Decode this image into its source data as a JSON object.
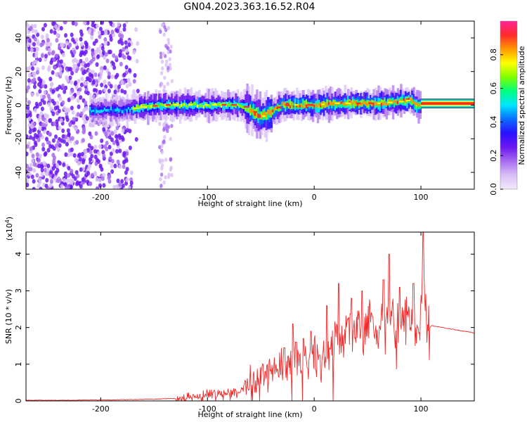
{
  "figure": {
    "title": "GN04.2023.363.16.52.R04"
  },
  "colors": {
    "snr_line": "#ee2a2a",
    "band": "#222222",
    "axes": "#000000"
  },
  "colorbar": {
    "label": "Normalized spectral amplitude",
    "ticks": [
      "0.0",
      "0.2",
      "0.4",
      "0.6",
      "0.8"
    ],
    "tick_values": [
      0.0,
      0.2,
      0.4,
      0.6,
      0.8
    ],
    "range": [
      0,
      1
    ],
    "colormap": [
      "#f2e9fb",
      "#d9bff5",
      "#a86cf0",
      "#6b18f0",
      "#2a10ff",
      "#0a6cff",
      "#00e5ff",
      "#00ff80",
      "#7fff00",
      "#ffff00",
      "#ff9900",
      "#ff2a2a",
      "#ff2299"
    ]
  },
  "chart_data": [
    {
      "type": "heatmap",
      "xlabel": "Height of straight line (km)",
      "ylabel": "Frequency (Hz)",
      "xlim": [
        -270,
        150
      ],
      "ylim": [
        -50,
        50
      ],
      "xticks": [
        -200,
        -100,
        0,
        100
      ],
      "xtick_labels": [
        "-200",
        "-100",
        "0",
        "100"
      ],
      "yticks": [
        -40,
        -20,
        0,
        20,
        40
      ],
      "ytick_labels": [
        "-40",
        "-20",
        "0",
        "20",
        "40"
      ],
      "ridge": {
        "x": [
          -205,
          -180,
          -160,
          -140,
          -120,
          -100,
          -85,
          -70,
          -60,
          -50,
          -40,
          -30,
          -15,
          0,
          20,
          40,
          60,
          80,
          90,
          98,
          105,
          150
        ],
        "y": [
          -3,
          -3,
          -1,
          0,
          0,
          0,
          0,
          0,
          -3,
          -7,
          -4,
          0,
          0,
          0,
          1,
          1,
          1,
          2,
          3,
          -1,
          1,
          1
        ]
      }
    },
    {
      "type": "line",
      "xlabel": "Height of straight line (km)",
      "ylabel": "SNR (10 * v/v)",
      "yscale_label": "(x10",
      "yscale_exp": "4",
      "yscale_close": ")",
      "xlim": [
        -270,
        150
      ],
      "ylim": [
        0,
        4.6
      ],
      "xticks": [
        -200,
        -100,
        0,
        100
      ],
      "xtick_labels": [
        "-200",
        "-100",
        "0",
        "100"
      ],
      "yticks": [
        0,
        1,
        2,
        3,
        4
      ],
      "ytick_labels": [
        "0",
        "1",
        "2",
        "3",
        "4"
      ],
      "series": [
        {
          "x": [
            -270,
            -250,
            -230,
            -210,
            -190,
            -170,
            -150,
            -130,
            -120,
            -110,
            -100,
            -90,
            -80,
            -70,
            -60,
            -50,
            -40,
            -30,
            -20,
            -10,
            0,
            10,
            20,
            30,
            40,
            50,
            60,
            70,
            80,
            90,
            95,
            100,
            102,
            105,
            110,
            120,
            130,
            140,
            150
          ],
          "y": [
            0.01,
            0.01,
            0.01,
            0.02,
            0.02,
            0.03,
            0.04,
            0.06,
            0.1,
            0.15,
            0.2,
            0.2,
            0.25,
            0.3,
            0.45,
            0.6,
            0.85,
            1.0,
            1.1,
            1.1,
            1.2,
            1.4,
            1.75,
            1.9,
            2.0,
            2.05,
            2.05,
            2.1,
            2.15,
            2.15,
            2.2,
            2.25,
            4.6,
            1.9,
            2.05,
            2.0,
            1.95,
            1.9,
            1.85
          ],
          "peaks": [
            {
              "x": -38,
              "y": 0.9
            },
            {
              "x": -28,
              "y": 1.45
            },
            {
              "x": -20,
              "y": 2.1
            },
            {
              "x": -17,
              "y": 1.6
            },
            {
              "x": -10,
              "y": 1.7
            },
            {
              "x": -3,
              "y": 1.9
            },
            {
              "x": 5,
              "y": 1.25
            },
            {
              "x": 12,
              "y": 2.6
            },
            {
              "x": 23,
              "y": 3.2
            },
            {
              "x": 35,
              "y": 2.8
            },
            {
              "x": 45,
              "y": 3.0
            },
            {
              "x": 55,
              "y": 2.3
            },
            {
              "x": 65,
              "y": 3.3
            },
            {
              "x": 70,
              "y": 4.0
            },
            {
              "x": 80,
              "y": 3.1
            },
            {
              "x": 93,
              "y": 3.2
            },
            {
              "x": 97,
              "y": 2.0
            },
            {
              "x": 102,
              "y": 4.6
            }
          ]
        }
      ]
    }
  ]
}
